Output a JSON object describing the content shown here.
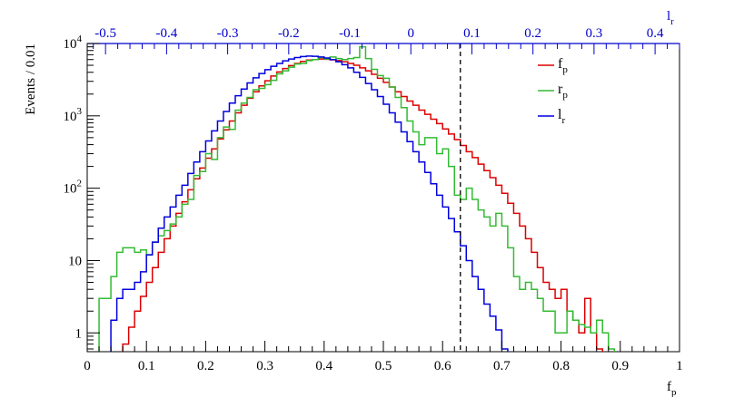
{
  "chart_data": {
    "type": "line",
    "ylabel": "Events / 0.01",
    "xlabel": "f_p",
    "xlim": [
      0,
      1
    ],
    "ylim": [
      0.55,
      10000
    ],
    "y_scale": "log",
    "x_ticks": [
      "0",
      "0.1",
      "0.2",
      "0.3",
      "0.4",
      "0.5",
      "0.6",
      "0.7",
      "0.8",
      "0.9",
      "1"
    ],
    "y_ticks": [
      {
        "value": 1,
        "label": "1"
      },
      {
        "value": 10,
        "label": "10"
      },
      {
        "value": 100,
        "label": "10",
        "sup": "2"
      },
      {
        "value": 1000,
        "label": "10",
        "sup": "3"
      },
      {
        "value": 10000,
        "label": "10",
        "sup": "4"
      }
    ],
    "top_axis": {
      "label": "l_r",
      "range": [
        -0.53,
        0.44
      ],
      "ticks": [
        "-0.5",
        "-0.4",
        "-0.3",
        "-0.2",
        "-0.1",
        "0",
        "0.1",
        "0.2",
        "0.3",
        "0.4"
      ],
      "color": "#0000cc"
    },
    "cut_line_x": 0.63,
    "legend": [
      {
        "label": "f",
        "sub": "p",
        "color": "#dd0000"
      },
      {
        "label": "r",
        "sub": "p",
        "color": "#33bb33"
      },
      {
        "label": "l",
        "sub": "r",
        "color": "#0000dd"
      }
    ],
    "series": [
      {
        "name": "f_p",
        "color": "#dd0000",
        "x_start": 0.06,
        "bin_width": 0.01,
        "values": [
          0.7,
          1.2,
          2.0,
          3.2,
          5.0,
          8,
          13,
          20,
          30,
          45,
          65,
          95,
          135,
          190,
          260,
          350,
          480,
          640,
          850,
          1100,
          1400,
          1750,
          2150,
          2600,
          3050,
          3550,
          4050,
          4500,
          4950,
          5300,
          5650,
          5900,
          6000,
          6100,
          6050,
          5950,
          5800,
          5600,
          5300,
          5000,
          4600,
          4200,
          3750,
          3300,
          2900,
          2500,
          2150,
          1850,
          1600,
          1400,
          1200,
          1050,
          900,
          780,
          660,
          560,
          470,
          390,
          320,
          265,
          215,
          175,
          140,
          110,
          85,
          62,
          45,
          30,
          20,
          13,
          8,
          5,
          4,
          3,
          4,
          2,
          1.5,
          1,
          3,
          1,
          0.6
        ]
      },
      {
        "name": "r_p",
        "color": "#33bb33",
        "x_start": 0.02,
        "bin_width": 0.01,
        "values": [
          3,
          3,
          6,
          13,
          15,
          15,
          13,
          14,
          12,
          18,
          22,
          26,
          32,
          40,
          60,
          70,
          150,
          170,
          300,
          250,
          500,
          700,
          650,
          1200,
          1500,
          1800,
          2300,
          2400,
          2700,
          3100,
          3800,
          4200,
          4700,
          5200,
          5300,
          5800,
          6000,
          6400,
          6100,
          6500,
          6200,
          6000,
          6200,
          6400,
          9000,
          6200,
          4400,
          3600,
          3300,
          2500,
          1800,
          1300,
          850,
          600,
          400,
          500,
          500,
          300,
          350,
          200,
          80,
          70,
          100,
          70,
          50,
          40,
          30,
          45,
          30,
          15,
          6,
          4,
          5,
          4,
          3,
          2,
          2,
          1,
          1,
          2,
          1.5,
          1.3,
          1.2,
          1,
          1.5,
          1,
          0.6
        ]
      },
      {
        "name": "l_r",
        "color": "#0000dd",
        "x_start": 0.04,
        "bin_width": 0.01,
        "values": [
          1.5,
          3,
          4,
          4,
          5,
          7,
          12,
          18,
          28,
          40,
          55,
          80,
          110,
          160,
          230,
          320,
          450,
          620,
          850,
          1150,
          1500,
          1900,
          2350,
          2850,
          3350,
          3850,
          4350,
          4850,
          5300,
          5750,
          6100,
          6400,
          6600,
          6700,
          6650,
          6500,
          6300,
          6000,
          5600,
          5100,
          4600,
          4000,
          3400,
          2800,
          2300,
          1850,
          1450,
          1100,
          820,
          600,
          440,
          320,
          230,
          165,
          115,
          80,
          55,
          38,
          25,
          16,
          10,
          6,
          4,
          2.5,
          1.7,
          1.1,
          0.6
        ]
      }
    ]
  }
}
